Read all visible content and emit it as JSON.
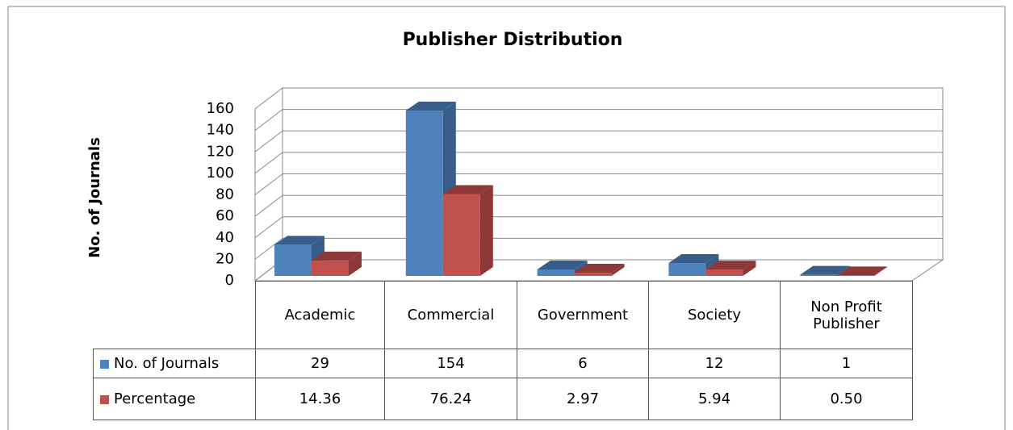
{
  "chart_data": {
    "type": "bar3d",
    "title": "Publisher Distribution",
    "y_label": "No. of Journals",
    "categories": [
      "Academic",
      "Commercial",
      "Government",
      "Society",
      "Non Profit Publisher"
    ],
    "series": [
      {
        "name": "No. of Journals",
        "color": "#4f81bd",
        "side_color": "#385d8a",
        "values": [
          29,
          154,
          6,
          12,
          1
        ]
      },
      {
        "name": "Percentage",
        "color": "#c0504d",
        "side_color": "#8c3836",
        "values": [
          14.36,
          76.24,
          2.97,
          5.94,
          0.5
        ],
        "value_labels": [
          "14.36",
          "76.24",
          "2.97",
          "5.94",
          "0.50"
        ]
      }
    ],
    "ylim": [
      0,
      160
    ],
    "yticks": [
      0,
      20,
      40,
      60,
      80,
      100,
      120,
      140,
      160
    ],
    "grid": true,
    "data_table": true
  }
}
